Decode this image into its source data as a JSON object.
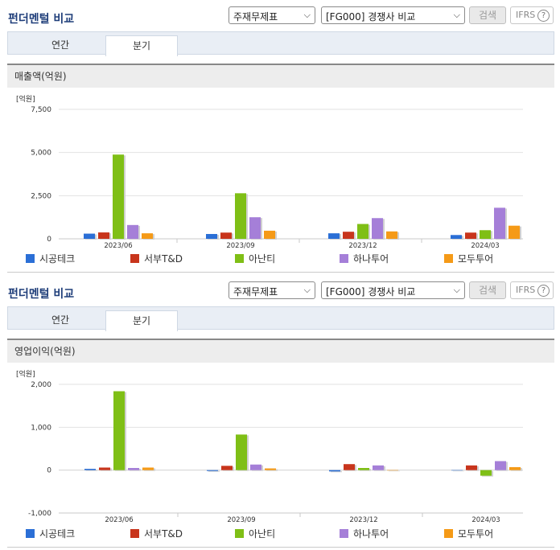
{
  "panels": [
    {
      "title": "펀더멘털 비교",
      "select1": "주재무제표",
      "select2": "[FG000] 경쟁사 비교",
      "search_label": "검색",
      "ifrs_label": "IFRS",
      "tabs": [
        "연간",
        "분기"
      ],
      "active_tab": 1,
      "section_title": "매출액(억원)"
    },
    {
      "title": "펀더멘털 비교",
      "select1": "주재무제표",
      "select2": "[FG000] 경쟁사 비교",
      "search_label": "검색",
      "ifrs_label": "IFRS",
      "tabs": [
        "연간",
        "분기"
      ],
      "active_tab": 1,
      "section_title": "영업이익(억원)"
    }
  ],
  "legend": [
    {
      "name": "시공테크",
      "color": "#2b6fd6"
    },
    {
      "name": "서부T&D",
      "color": "#c8351c"
    },
    {
      "name": "아난티",
      "color": "#7fbf16"
    },
    {
      "name": "하나투어",
      "color": "#a57fd8"
    },
    {
      "name": "모두투어",
      "color": "#f59a17"
    }
  ],
  "chart_data": [
    {
      "type": "bar",
      "unit": "[억원]",
      "categories": [
        "2023/06",
        "2023/09",
        "2023/12",
        "2024/03"
      ],
      "ylim": [
        0,
        7500
      ],
      "yticks": [
        0,
        2500,
        5000,
        7500
      ],
      "ytick_labels": [
        "0",
        "2,500",
        "5,000",
        "7,500"
      ],
      "series": [
        {
          "name": "시공테크",
          "values": [
            300,
            280,
            320,
            220
          ]
        },
        {
          "name": "서부T&D",
          "values": [
            370,
            360,
            410,
            360
          ]
        },
        {
          "name": "아난티",
          "values": [
            4880,
            2640,
            860,
            500
          ]
        },
        {
          "name": "하나투어",
          "values": [
            800,
            1250,
            1200,
            1800
          ]
        },
        {
          "name": "모두투어",
          "values": [
            320,
            470,
            430,
            760
          ]
        }
      ],
      "grid": true
    },
    {
      "type": "bar",
      "unit": "[억원]",
      "categories": [
        "2023/06",
        "2023/09",
        "2023/12",
        "2024/03"
      ],
      "ylim": [
        -1000,
        2000
      ],
      "yticks": [
        -1000,
        0,
        1000,
        2000
      ],
      "ytick_labels": [
        "-1,000",
        "0",
        "1,000",
        "2,000"
      ],
      "series": [
        {
          "name": "시공테크",
          "values": [
            30,
            -20,
            -30,
            0
          ]
        },
        {
          "name": "서부T&D",
          "values": [
            60,
            100,
            140,
            110
          ]
        },
        {
          "name": "아난티",
          "values": [
            1840,
            830,
            50,
            -130
          ]
        },
        {
          "name": "하나투어",
          "values": [
            50,
            130,
            110,
            210
          ]
        },
        {
          "name": "모두투어",
          "values": [
            60,
            40,
            0,
            70
          ]
        }
      ],
      "grid": true
    }
  ]
}
